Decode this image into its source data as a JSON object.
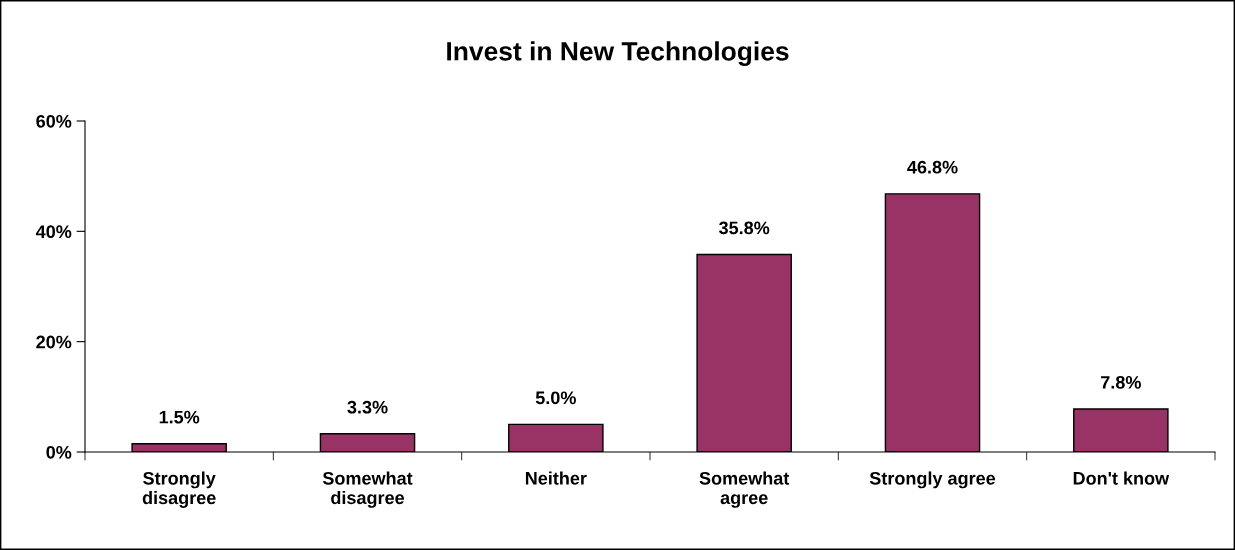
{
  "chart_data": {
    "type": "bar",
    "title": "Invest in New Technologies",
    "categories": [
      "Strongly\ndisagree",
      "Somewhat\ndisagree",
      "Neither",
      "Somewhat\nagree",
      "Strongly agree",
      "Don't know"
    ],
    "values": [
      1.5,
      3.3,
      5.0,
      35.8,
      46.8,
      7.8
    ],
    "value_labels": [
      "1.5%",
      "3.3%",
      "5.0%",
      "35.8%",
      "46.8%",
      "7.8%"
    ],
    "color": "#993366",
    "ylim": [
      0,
      60
    ],
    "yticks": [
      {
        "value": 0,
        "label": "0%"
      },
      {
        "value": 20,
        "label": "20%"
      },
      {
        "value": 40,
        "label": "40%"
      },
      {
        "value": 60,
        "label": "60%"
      }
    ],
    "grid": false,
    "legend": false
  }
}
